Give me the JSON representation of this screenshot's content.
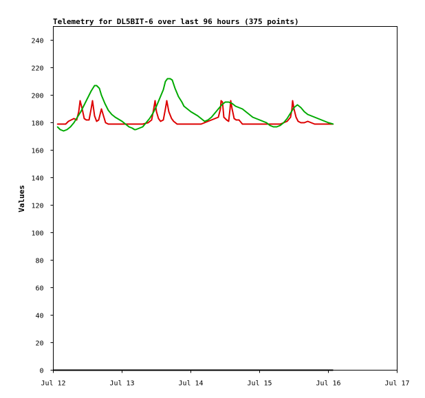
{
  "chart_data": {
    "type": "line",
    "title": "Telemetry for DL5BIT-6 over last 96 hours (375 points)",
    "xlabel": "",
    "ylabel": "Values",
    "ylim": [
      0,
      250
    ],
    "yticks": [
      0,
      20,
      40,
      60,
      80,
      100,
      120,
      140,
      160,
      180,
      200,
      220,
      240
    ],
    "xlim": [
      12.0,
      17.0
    ],
    "xticks": [
      12,
      13,
      14,
      15,
      16,
      17
    ],
    "xtick_labels": [
      "Jul 12",
      "Jul 13",
      "Jul 14",
      "Jul 15",
      "Jul 16",
      "Jul 17"
    ],
    "grid": false,
    "series": [
      {
        "color": "#dd0000",
        "x": [
          12.06,
          12.12,
          12.18,
          12.22,
          12.26,
          12.3,
          12.34,
          12.37,
          12.39,
          12.42,
          12.45,
          12.48,
          12.52,
          12.55,
          12.57,
          12.6,
          12.63,
          12.66,
          12.7,
          12.73,
          12.76,
          12.8,
          12.9,
          13.0,
          13.1,
          13.2,
          13.3,
          13.38,
          13.43,
          13.46,
          13.48,
          13.5,
          13.53,
          13.56,
          13.6,
          13.63,
          13.65,
          13.68,
          13.72,
          13.75,
          13.8,
          13.9,
          14.0,
          14.1,
          14.15,
          14.2,
          14.25,
          14.3,
          14.35,
          14.4,
          14.43,
          14.44,
          14.46,
          14.48,
          14.52,
          14.55,
          14.57,
          14.58,
          14.6,
          14.63,
          14.66,
          14.7,
          14.75,
          14.8,
          14.9,
          15.0,
          15.1,
          15.2,
          15.3,
          15.35,
          15.4,
          15.45,
          15.47,
          15.48,
          15.5,
          15.53,
          15.56,
          15.6,
          15.65,
          15.7,
          15.75,
          15.8,
          15.9,
          16.0,
          16.07
        ],
        "y": [
          179,
          179,
          179,
          181,
          182,
          183,
          182,
          188,
          196,
          190,
          183,
          182,
          182,
          190,
          196,
          185,
          181,
          182,
          190,
          185,
          180,
          179,
          179,
          179,
          179,
          179,
          179,
          180,
          182,
          190,
          196,
          188,
          183,
          181,
          182,
          190,
          196,
          188,
          183,
          181,
          179,
          179,
          179,
          179,
          179,
          180,
          181,
          182,
          183,
          184,
          190,
          196,
          195,
          184,
          182,
          181,
          190,
          196,
          190,
          183,
          182,
          182,
          179,
          179,
          179,
          179,
          179,
          179,
          179,
          180,
          181,
          184,
          190,
          196,
          190,
          184,
          181,
          180,
          180,
          181,
          180,
          179,
          179,
          179,
          179
        ]
      },
      {
        "color": "#00aa00",
        "x": [
          12.06,
          12.1,
          12.15,
          12.2,
          12.25,
          12.3,
          12.35,
          12.4,
          12.45,
          12.5,
          12.55,
          12.6,
          12.63,
          12.67,
          12.7,
          12.75,
          12.8,
          12.85,
          12.9,
          13.0,
          13.05,
          13.1,
          13.15,
          13.18,
          13.2,
          13.25,
          13.3,
          13.35,
          13.4,
          13.45,
          13.5,
          13.55,
          13.6,
          13.63,
          13.66,
          13.7,
          13.73,
          13.77,
          13.82,
          13.87,
          13.9,
          14.0,
          14.1,
          14.15,
          14.2,
          14.25,
          14.3,
          14.35,
          14.4,
          14.45,
          14.5,
          14.55,
          14.6,
          14.65,
          14.7,
          14.75,
          14.8,
          14.85,
          14.9,
          15.0,
          15.1,
          15.15,
          15.2,
          15.25,
          15.3,
          15.35,
          15.4,
          15.45,
          15.5,
          15.55,
          15.6,
          15.65,
          15.7,
          15.75,
          15.8,
          15.9,
          16.0,
          16.07
        ],
        "y": [
          177,
          175,
          174,
          175,
          177,
          180,
          184,
          188,
          193,
          198,
          203,
          207,
          207,
          205,
          200,
          194,
          189,
          186,
          184,
          181,
          179,
          177,
          176,
          175,
          175,
          176,
          177,
          180,
          183,
          187,
          192,
          198,
          204,
          210,
          212,
          212,
          211,
          205,
          199,
          195,
          192,
          188,
          185,
          183,
          181,
          182,
          184,
          187,
          190,
          193,
          195,
          195,
          194,
          192,
          191,
          190,
          188,
          186,
          184,
          182,
          180,
          178,
          177,
          177,
          178,
          180,
          183,
          187,
          191,
          193,
          191,
          188,
          186,
          185,
          184,
          182,
          180,
          179
        ]
      }
    ]
  }
}
